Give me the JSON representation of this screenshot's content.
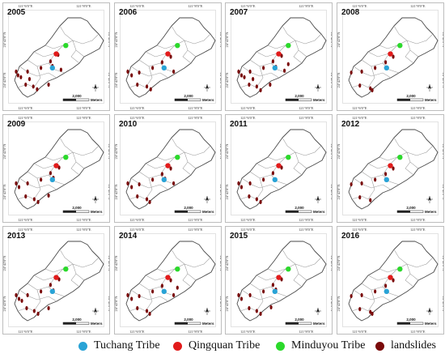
{
  "panels": [
    {
      "year": "2005",
      "landslides": [
        [
          0.08,
          0.66
        ],
        [
          0.1,
          0.7
        ],
        [
          0.13,
          0.72
        ],
        [
          0.2,
          0.66
        ],
        [
          0.22,
          0.74
        ],
        [
          0.34,
          0.62
        ],
        [
          0.44,
          0.55
        ],
        [
          0.46,
          0.6
        ],
        [
          0.52,
          0.48
        ],
        [
          0.55,
          0.64
        ],
        [
          0.18,
          0.8
        ],
        [
          0.26,
          0.82
        ],
        [
          0.3,
          0.85
        ],
        [
          0.42,
          0.8
        ]
      ]
    },
    {
      "year": "2006",
      "landslides": [
        [
          0.08,
          0.66
        ],
        [
          0.12,
          0.7
        ],
        [
          0.2,
          0.67
        ],
        [
          0.34,
          0.62
        ],
        [
          0.44,
          0.56
        ],
        [
          0.47,
          0.62
        ],
        [
          0.53,
          0.5
        ],
        [
          0.56,
          0.66
        ],
        [
          0.18,
          0.8
        ],
        [
          0.28,
          0.82
        ],
        [
          0.32,
          0.85
        ]
      ]
    },
    {
      "year": "2007",
      "landslides": [
        [
          0.08,
          0.66
        ],
        [
          0.11,
          0.7
        ],
        [
          0.14,
          0.72
        ],
        [
          0.2,
          0.66
        ],
        [
          0.23,
          0.74
        ],
        [
          0.34,
          0.62
        ],
        [
          0.44,
          0.55
        ],
        [
          0.47,
          0.61
        ],
        [
          0.53,
          0.49
        ],
        [
          0.56,
          0.65
        ],
        [
          0.19,
          0.8
        ],
        [
          0.27,
          0.82
        ],
        [
          0.31,
          0.86
        ],
        [
          0.41,
          0.8
        ],
        [
          0.6,
          0.58
        ]
      ]
    },
    {
      "year": "2008",
      "landslides": [
        [
          0.09,
          0.67
        ],
        [
          0.2,
          0.66
        ],
        [
          0.34,
          0.62
        ],
        [
          0.45,
          0.56
        ],
        [
          0.53,
          0.5
        ],
        [
          0.18,
          0.81
        ],
        [
          0.29,
          0.84
        ],
        [
          0.31,
          0.86
        ]
      ]
    },
    {
      "year": "2009",
      "landslides": [
        [
          0.08,
          0.66
        ],
        [
          0.11,
          0.7
        ],
        [
          0.2,
          0.66
        ],
        [
          0.34,
          0.62
        ],
        [
          0.44,
          0.55
        ],
        [
          0.47,
          0.6
        ],
        [
          0.53,
          0.49
        ],
        [
          0.18,
          0.8
        ],
        [
          0.27,
          0.83
        ],
        [
          0.31,
          0.86
        ],
        [
          0.42,
          0.79
        ]
      ]
    },
    {
      "year": "2010",
      "landslides": [
        [
          0.08,
          0.66
        ],
        [
          0.12,
          0.7
        ],
        [
          0.2,
          0.67
        ],
        [
          0.34,
          0.62
        ],
        [
          0.44,
          0.56
        ],
        [
          0.47,
          0.61
        ],
        [
          0.53,
          0.5
        ],
        [
          0.56,
          0.66
        ],
        [
          0.18,
          0.8
        ],
        [
          0.28,
          0.83
        ],
        [
          0.31,
          0.86
        ]
      ]
    },
    {
      "year": "2011",
      "landslides": [
        [
          0.08,
          0.66
        ],
        [
          0.11,
          0.7
        ],
        [
          0.2,
          0.66
        ],
        [
          0.34,
          0.62
        ],
        [
          0.44,
          0.55
        ],
        [
          0.53,
          0.49
        ],
        [
          0.19,
          0.8
        ],
        [
          0.27,
          0.83
        ],
        [
          0.31,
          0.86
        ]
      ]
    },
    {
      "year": "2012",
      "landslides": [
        [
          0.09,
          0.67
        ],
        [
          0.2,
          0.66
        ],
        [
          0.34,
          0.62
        ],
        [
          0.45,
          0.56
        ],
        [
          0.53,
          0.5
        ],
        [
          0.18,
          0.81
        ],
        [
          0.29,
          0.84
        ]
      ]
    },
    {
      "year": "2013",
      "landslides": [
        [
          0.08,
          0.66
        ],
        [
          0.11,
          0.7
        ],
        [
          0.14,
          0.72
        ],
        [
          0.2,
          0.66
        ],
        [
          0.34,
          0.62
        ],
        [
          0.44,
          0.55
        ],
        [
          0.47,
          0.61
        ],
        [
          0.53,
          0.49
        ],
        [
          0.19,
          0.8
        ],
        [
          0.27,
          0.83
        ],
        [
          0.31,
          0.86
        ],
        [
          0.42,
          0.8
        ]
      ]
    },
    {
      "year": "2014",
      "landslides": [
        [
          0.08,
          0.66
        ],
        [
          0.12,
          0.7
        ],
        [
          0.2,
          0.67
        ],
        [
          0.34,
          0.62
        ],
        [
          0.44,
          0.56
        ],
        [
          0.47,
          0.62
        ],
        [
          0.53,
          0.5
        ],
        [
          0.56,
          0.66
        ],
        [
          0.18,
          0.8
        ],
        [
          0.28,
          0.83
        ],
        [
          0.31,
          0.86
        ],
        [
          0.6,
          0.58
        ]
      ]
    },
    {
      "year": "2015",
      "landslides": [
        [
          0.08,
          0.66
        ],
        [
          0.11,
          0.7
        ],
        [
          0.2,
          0.66
        ],
        [
          0.34,
          0.62
        ],
        [
          0.44,
          0.55
        ],
        [
          0.47,
          0.6
        ],
        [
          0.53,
          0.49
        ],
        [
          0.19,
          0.8
        ],
        [
          0.27,
          0.83
        ],
        [
          0.31,
          0.86
        ],
        [
          0.42,
          0.79
        ]
      ]
    },
    {
      "year": "2016",
      "landslides": [
        [
          0.09,
          0.67
        ],
        [
          0.2,
          0.66
        ],
        [
          0.34,
          0.62
        ],
        [
          0.45,
          0.56
        ],
        [
          0.53,
          0.5
        ],
        [
          0.18,
          0.81
        ],
        [
          0.29,
          0.84
        ],
        [
          0.31,
          0.86
        ]
      ]
    }
  ],
  "coordinates": {
    "lon_left": "121°6'0\"E",
    "lon_right": "121°8'0\"E",
    "lat": "24°42'0\"N"
  },
  "scale_bar": {
    "value": "2,000",
    "unit": "Meters"
  },
  "tribes": {
    "tuchang": [
      0.46,
      0.62
    ],
    "qingquan": [
      0.5,
      0.47
    ],
    "minduyou": [
      0.6,
      0.38
    ]
  },
  "legend": [
    {
      "label": "Tuchang Tribe",
      "color": "#29a3d6"
    },
    {
      "label": "Qingquan Tribe",
      "color": "#e21b1b"
    },
    {
      "label": "Minduyou Tribe",
      "color": "#2bd92b"
    },
    {
      "label": "landslides",
      "color": "#7a0a0a"
    }
  ]
}
